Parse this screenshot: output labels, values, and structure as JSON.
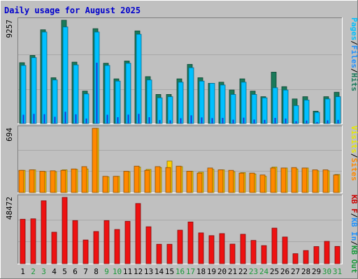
{
  "chart_data": {
    "type": "bar",
    "title": "Daily usage for August 2025",
    "days": [
      {
        "label": "1",
        "weekend": false
      },
      {
        "label": "2",
        "weekend": true
      },
      {
        "label": "3",
        "weekend": true
      },
      {
        "label": "4",
        "weekend": false
      },
      {
        "label": "5",
        "weekend": false
      },
      {
        "label": "6",
        "weekend": false
      },
      {
        "label": "7",
        "weekend": false
      },
      {
        "label": "8",
        "weekend": false
      },
      {
        "label": "9",
        "weekend": true
      },
      {
        "label": "10",
        "weekend": true
      },
      {
        "label": "11",
        "weekend": false
      },
      {
        "label": "12",
        "weekend": false
      },
      {
        "label": "13",
        "weekend": false
      },
      {
        "label": "14",
        "weekend": false
      },
      {
        "label": "15",
        "weekend": false
      },
      {
        "label": "16",
        "weekend": true
      },
      {
        "label": "17",
        "weekend": true
      },
      {
        "label": "18",
        "weekend": false
      },
      {
        "label": "19",
        "weekend": false
      },
      {
        "label": "20",
        "weekend": false
      },
      {
        "label": "21",
        "weekend": false
      },
      {
        "label": "22",
        "weekend": false
      },
      {
        "label": "23",
        "weekend": true
      },
      {
        "label": "24",
        "weekend": true
      },
      {
        "label": "25",
        "weekend": false
      },
      {
        "label": "26",
        "weekend": false
      },
      {
        "label": "27",
        "weekend": false
      },
      {
        "label": "28",
        "weekend": false
      },
      {
        "label": "29",
        "weekend": false
      },
      {
        "label": "30",
        "weekend": true
      },
      {
        "label": "31",
        "weekend": true
      }
    ],
    "panels": [
      {
        "max_label": "9257",
        "ymax": 9257,
        "legend": [
          {
            "text": "Pages",
            "color": "#00c0ff"
          },
          {
            "text": "/",
            "color": "#000000"
          },
          {
            "text": "Files",
            "color": "#1e90ff"
          },
          {
            "text": "/",
            "color": "#000000"
          },
          {
            "text": "Hits",
            "color": "#1a7a5a"
          }
        ],
        "series": [
          {
            "key": "hits",
            "color": "#1a7a5a",
            "values": [
              5450,
              6100,
              8400,
              4100,
              9257,
              5500,
              2900,
              8500,
              5400,
              4000,
              5600,
              8300,
              4200,
              2600,
              2600,
              4000,
              5300,
              4100,
              3600,
              3700,
              3000,
              4000,
              2900,
              2400,
              4600,
              3300,
              2200,
              2400,
              1100,
              2400,
              2800
            ]
          },
          {
            "key": "files",
            "color": "#00c0ff",
            "values": [
              5200,
              5900,
              8200,
              3900,
              8650,
              5250,
              2650,
              8200,
              5200,
              3800,
              5400,
              8000,
              3900,
              2300,
              2400,
              3700,
              5000,
              3800,
              3600,
              3450,
              2600,
              3700,
              2600,
              2300,
              3200,
              3000,
              1600,
              2100,
              1000,
              2200,
              2400
            ]
          },
          {
            "key": "pages",
            "color": "#1e3ad0",
            "values": [
              780,
              860,
              830,
              600,
              1050,
              820,
              440,
              5450,
              780,
              560,
              790,
              860,
              560,
              300,
              280,
              470,
              730,
              540,
              480,
              500,
              340,
              520,
              350,
              320,
              500,
              440,
              200,
              260,
              130,
              280,
              320
            ]
          }
        ]
      },
      {
        "max_label": "694",
        "ymax": 694,
        "legend": [
          {
            "text": "Visits",
            "color": "#e8e800"
          },
          {
            "text": "/",
            "color": "#000000"
          },
          {
            "text": "Sites",
            "color": "#ff8800"
          }
        ],
        "series": [
          {
            "key": "visits",
            "color": "#ffd000",
            "values": [
              240,
              245,
              225,
              225,
              245,
              250,
              255,
              694,
              170,
              175,
              225,
              275,
              250,
              270,
              340,
              280,
              230,
              220,
              250,
              245,
              225,
              215,
              200,
              175,
              275,
              265,
              255,
              265,
              235,
              235,
              195
            ]
          },
          {
            "key": "sites",
            "color": "#ff8800",
            "values": [
              240,
              245,
              230,
              235,
              240,
              255,
              280,
              694,
              175,
              175,
              230,
              285,
              240,
              280,
              270,
              285,
              230,
              210,
              265,
              245,
              240,
              210,
              210,
              190,
              265,
              265,
              270,
              265,
              245,
              245,
              190
            ]
          }
        ]
      },
      {
        "max_label": "48472",
        "ymax": 48472,
        "legend": [
          {
            "text": "KB F",
            "color": "#cc0000"
          },
          {
            "text": "/",
            "color": "#000000"
          },
          {
            "text": "KB In",
            "color": "#1e90ff"
          },
          {
            "text": "/",
            "color": "#000000"
          },
          {
            "text": "KB Out",
            "color": "#1a9a3a"
          }
        ],
        "series": [
          {
            "key": "kb_f",
            "color": "#ee1111",
            "values": [
              32500,
              32800,
              46000,
              23000,
              48472,
              31500,
              17300,
              23500,
              31500,
              25000,
              31000,
              44000,
              27000,
              14200,
              14200,
              24500,
              30500,
              22500,
              20500,
              22000,
              14300,
              21500,
              17000,
              13200,
              26000,
              19500,
              7300,
              9600,
              12500,
              16300,
              12600
            ]
          }
        ]
      }
    ]
  }
}
